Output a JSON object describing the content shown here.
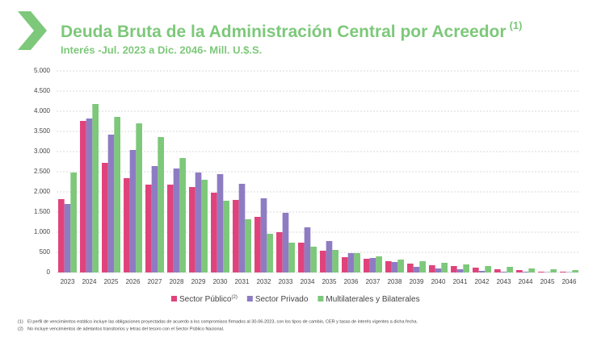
{
  "chart_data": {
    "type": "bar",
    "title": "Deuda Bruta de la Administración Central por Acreedor",
    "title_note": "(1)",
    "subtitle": "Interés -Jul. 2023 a Dic. 2046- Mill. U.$.S.",
    "categories": [
      "2023",
      "2024",
      "2025",
      "2026",
      "2027",
      "2028",
      "2029",
      "2030",
      "2031",
      "2032",
      "2033",
      "2034",
      "2035",
      "2036",
      "2037",
      "2038",
      "2039",
      "2040",
      "2041",
      "2042",
      "2043",
      "2044",
      "2045",
      "2046"
    ],
    "series": [
      {
        "name": "Sector Público",
        "name_note": "(2)",
        "color": "#e0437b",
        "values": [
          1820,
          3760,
          2720,
          2340,
          2180,
          2180,
          2120,
          1980,
          1800,
          1380,
          1000,
          740,
          540,
          380,
          340,
          280,
          220,
          180,
          160,
          120,
          80,
          60,
          20,
          20
        ]
      },
      {
        "name": "Sector Privado",
        "color": "#8e7cc3",
        "values": [
          1700,
          3820,
          3420,
          3040,
          2640,
          2580,
          2480,
          2440,
          2200,
          1840,
          1480,
          1120,
          780,
          480,
          360,
          260,
          140,
          100,
          80,
          40,
          20,
          20,
          10,
          10
        ]
      },
      {
        "name": "Multilaterales y Bilaterales",
        "color": "#7dc87a",
        "values": [
          2480,
          4180,
          3860,
          3700,
          3360,
          2840,
          2300,
          1780,
          1320,
          960,
          740,
          640,
          560,
          480,
          400,
          320,
          280,
          240,
          200,
          160,
          140,
          100,
          80,
          60
        ]
      }
    ],
    "ylim": [
      0,
      5000
    ],
    "yticks": [
      0,
      {
        "value": 500,
        "label": "500"
      },
      {
        "value": 1000,
        "label": "1.000"
      },
      {
        "value": 1500,
        "label": "1.500"
      },
      {
        "value": 2000,
        "label": "2.000"
      },
      {
        "value": 2500,
        "label": "2.500"
      },
      {
        "value": 3000,
        "label": "3.000"
      },
      {
        "value": 3500,
        "label": "3.500"
      },
      {
        "value": 4000,
        "label": "4.000"
      },
      {
        "value": 4500,
        "label": "4.500"
      },
      {
        "value": 5000,
        "label": "5.000"
      }
    ],
    "grid": true,
    "footnotes": [
      {
        "marker": "(1)",
        "text": "El perfil de vencimientos estático incluye las obligaciones proyectadas de acuerdo a los compromisos firmados al 30-06-2023, con los tipos de cambio, CER y tasas de interés vigentes a dicha fecha."
      },
      {
        "marker": "(2)",
        "text": "No incluye vencimientos de adelantos transitorios y letras del tesoro con el Sector Público Nacional."
      }
    ]
  }
}
